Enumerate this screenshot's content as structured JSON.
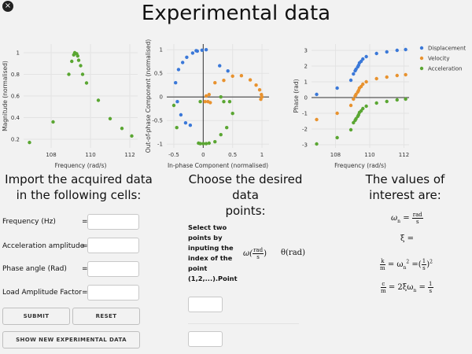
{
  "window": {
    "close_icon": "×"
  },
  "title": "Experimental data",
  "chart_data": [
    {
      "type": "scatter",
      "title": "",
      "xlabel": "Frequency (rad/s)",
      "ylabel": "Magnitude (normalised)",
      "xlim": [
        106.6,
        112.4
      ],
      "ylim": [
        0.12,
        1.08
      ],
      "xticks": [
        "108",
        "110",
        "112"
      ],
      "xtick_values": [
        108,
        110,
        112
      ],
      "yticks": [
        "1",
        "0.8",
        "0.6",
        "0.4",
        "0.2"
      ],
      "ytick_values": [
        1,
        0.8,
        0.6,
        0.4,
        0.2
      ],
      "series": [
        {
          "name": "Magnitude",
          "color": "#5aa632",
          "x": [
            106.9,
            108.1,
            108.9,
            109.05,
            109.15,
            109.2,
            109.3,
            109.35,
            109.4,
            109.5,
            109.6,
            109.8,
            110.4,
            111.0,
            111.6,
            112.1
          ],
          "y": [
            0.17,
            0.36,
            0.8,
            0.92,
            0.98,
            1.0,
            0.99,
            0.97,
            0.93,
            0.88,
            0.8,
            0.72,
            0.56,
            0.39,
            0.3,
            0.23
          ]
        }
      ]
    },
    {
      "type": "scatter",
      "title": "",
      "xlabel": "In-phase Component (normalised)",
      "ylabel": "Out-of-phase Component (normalised)",
      "xlim": [
        -0.62,
        1.12
      ],
      "ylim": [
        -1.08,
        1.12
      ],
      "xticks": [
        "-0.5",
        "0",
        "0.5",
        "1"
      ],
      "xtick_values": [
        -0.5,
        0,
        0.5,
        1
      ],
      "yticks": [
        "1",
        "0.5",
        "0",
        "-0.5",
        "-1"
      ],
      "ytick_values": [
        1,
        0.5,
        0,
        -0.5,
        -1
      ],
      "series": [
        {
          "name": "Displacement",
          "color": "#3a78d8",
          "x": [
            -0.02,
            -0.1,
            -0.18,
            -0.28,
            -0.35,
            -0.42,
            -0.47,
            -0.44,
            -0.38,
            -0.3,
            -0.22,
            -0.12,
            0.05,
            0.28,
            0.42
          ],
          "y": [
            0.99,
            0.97,
            0.93,
            0.84,
            0.73,
            0.58,
            0.3,
            -0.1,
            -0.38,
            -0.55,
            -0.6,
            0.98,
            1.0,
            0.66,
            0.55
          ]
        },
        {
          "name": "Velocity",
          "color": "#e8922e",
          "x": [
            0.05,
            0.1,
            0.2,
            0.35,
            0.5,
            0.65,
            0.8,
            0.9,
            0.96,
            0.99,
            1.0,
            0.98,
            0.03,
            0.08,
            0.12
          ],
          "y": [
            0.02,
            0.05,
            0.3,
            0.35,
            0.44,
            0.45,
            0.36,
            0.25,
            0.15,
            0.05,
            0.0,
            -0.05,
            -0.1,
            -0.1,
            -0.12
          ]
        },
        {
          "name": "Acceleration",
          "color": "#5aa632",
          "x": [
            -0.08,
            -0.05,
            0.0,
            0.05,
            0.1,
            0.2,
            0.3,
            0.4,
            0.5,
            0.45,
            0.35,
            0.3,
            -0.05,
            -0.45,
            -0.5
          ],
          "y": [
            -0.98,
            -0.99,
            -0.99,
            -0.99,
            -0.98,
            -0.95,
            -0.8,
            -0.65,
            -0.35,
            -0.1,
            -0.1,
            0.0,
            -0.1,
            -0.65,
            -0.18
          ]
        }
      ]
    },
    {
      "type": "scatter",
      "title": "",
      "xlabel": "Frequency (rad/s)",
      "ylabel": "Phase (rad)",
      "xlim": [
        106.6,
        112.3
      ],
      "ylim": [
        -3.2,
        3.4
      ],
      "xticks": [
        "108",
        "110",
        "112"
      ],
      "xtick_values": [
        108,
        110,
        112
      ],
      "yticks": [
        "3",
        "2",
        "1",
        "0",
        "-1",
        "-2",
        "-3"
      ],
      "ytick_values": [
        3,
        2,
        1,
        0,
        -1,
        -2,
        -3
      ],
      "legend_position": "top-right",
      "series": [
        {
          "name": "Displacement",
          "color": "#3a78d8",
          "x": [
            106.9,
            108.1,
            108.9,
            109.05,
            109.15,
            109.2,
            109.3,
            109.35,
            109.4,
            109.5,
            109.6,
            109.8,
            110.4,
            111.0,
            111.6,
            112.1
          ],
          "y": [
            0.2,
            0.6,
            1.1,
            1.5,
            1.7,
            1.8,
            1.95,
            2.05,
            2.2,
            2.3,
            2.45,
            2.6,
            2.8,
            2.9,
            3.0,
            3.05
          ]
        },
        {
          "name": "Velocity",
          "color": "#e8922e",
          "x": [
            106.9,
            108.1,
            108.9,
            109.05,
            109.15,
            109.2,
            109.3,
            109.35,
            109.4,
            109.5,
            109.6,
            109.8,
            110.4,
            111.0,
            111.6,
            112.1
          ],
          "y": [
            -1.4,
            -1.0,
            -0.5,
            -0.1,
            0.1,
            0.2,
            0.35,
            0.45,
            0.6,
            0.7,
            0.85,
            1.0,
            1.2,
            1.3,
            1.4,
            1.45
          ]
        },
        {
          "name": "Acceleration",
          "color": "#5aa632",
          "x": [
            106.9,
            108.1,
            108.9,
            109.05,
            109.15,
            109.2,
            109.3,
            109.35,
            109.4,
            109.5,
            109.6,
            109.8,
            110.4,
            111.0,
            111.6,
            112.1
          ],
          "y": [
            -2.95,
            -2.55,
            -2.05,
            -1.6,
            -1.45,
            -1.35,
            -1.2,
            -1.1,
            -0.95,
            -0.85,
            -0.7,
            -0.55,
            -0.35,
            -0.25,
            -0.15,
            -0.1
          ]
        }
      ]
    }
  ],
  "import_section": {
    "heading_line1": "Import the acquired data",
    "heading_line2": "in the following cells:",
    "fields": [
      {
        "label": "Frequency (Hz)",
        "eq": "=",
        "value": ""
      },
      {
        "label": "Acceleration amplitude (V)",
        "eq": "=",
        "value": ""
      },
      {
        "label": "Phase angle (Rad)",
        "eq": "=",
        "value": ""
      },
      {
        "label": "Load Amplitude Factor",
        "eq": "=",
        "value": ""
      }
    ],
    "submit_label": "SUBMIT",
    "reset_label": "RESET",
    "show_new_label": "SHOW NEW EXPERIMENTAL DATA"
  },
  "choose_section": {
    "heading_line1": "Choose the desired data",
    "heading_line2": "points:",
    "instructions": "Select two points by inputing the index of the point (1,2,...).Point",
    "omega_label": "ω(",
    "omega_unit_num": "rad",
    "omega_unit_den": "s",
    "omega_close": ")",
    "theta_label": "θ(rad)"
  },
  "values_section": {
    "heading_line1": "The values of",
    "heading_line2": "interest are:",
    "omega_n": "ω",
    "omega_n_sub": "n",
    "xi": "ξ =",
    "k_over_m": "= ω",
    "c_over_m": "= 2ξω"
  }
}
